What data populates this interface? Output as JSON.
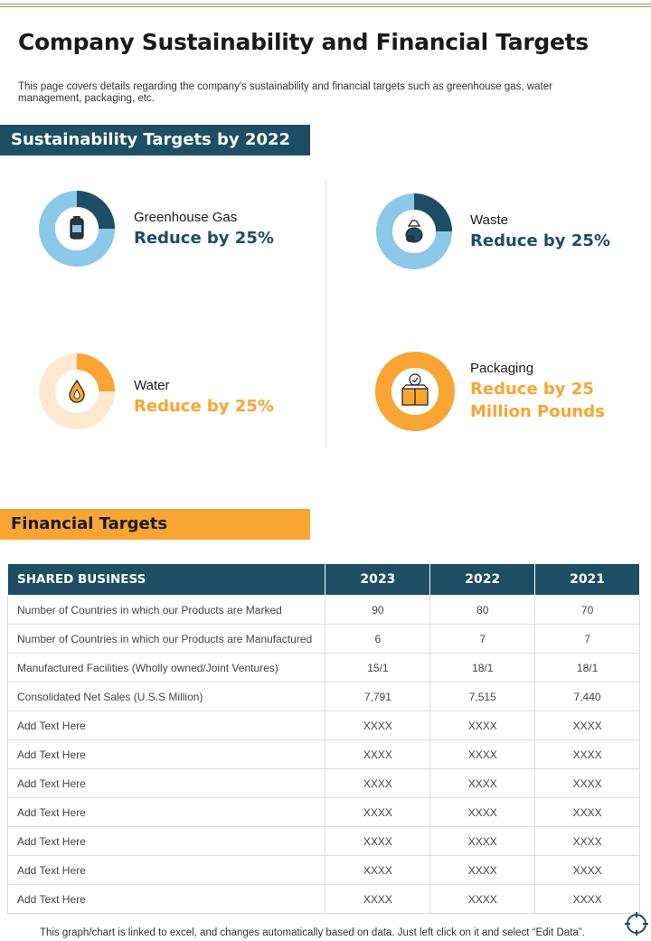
{
  "page": {
    "title": "Company Sustainability and Financial Targets",
    "description": "This page covers details regarding the company's sustainability and financial targets such as greenhouse gas, water management, packaging, etc."
  },
  "sustainability": {
    "heading": "Sustainability Targets by 2022",
    "targets": [
      {
        "name": "Greenhouse Gas",
        "value": "Reduce by 25%",
        "icon": "gas-cylinder-icon",
        "share": 0.25,
        "color": "#1d4e64",
        "track": "#8cc8e8"
      },
      {
        "name": "Waste",
        "value": "Reduce by 25%",
        "icon": "trash-bag-icon",
        "share": 0.25,
        "color": "#1d4e64",
        "track": "#8cc8e8"
      },
      {
        "name": "Water",
        "value": "Reduce by 25%",
        "icon": "water-drop-icon",
        "share": 0.25,
        "color": "#f8a533",
        "track": "#fde9cf"
      },
      {
        "name": "Packaging",
        "value_line1": "Reduce by 25",
        "value_line2": "Million Pounds",
        "icon": "package-box-icon",
        "share": 1.0,
        "color": "#f8a533",
        "track": "#f8a533"
      }
    ]
  },
  "financial": {
    "heading": "Financial Targets",
    "columns": [
      "SHARED BUSINESS",
      "2023",
      "2022",
      "2021"
    ],
    "rows": [
      [
        "Number of Countries in which our Products are Marked",
        "90",
        "80",
        "70"
      ],
      [
        "Number of Countries in which our Products are Manufactured",
        "6",
        "7",
        "7"
      ],
      [
        "Manufactured Facilities (Wholly owned/Joint Ventures)",
        "15/1",
        "18/1",
        "18/1"
      ],
      [
        "Consolidated Net Sales (U.S.S Million)",
        "7,791",
        "7,515",
        "7,440"
      ],
      [
        "Add Text Here",
        "XXXX",
        "XXXX",
        "XXXX"
      ],
      [
        "Add Text Here",
        "XXXX",
        "XXXX",
        "XXXX"
      ],
      [
        "Add Text Here",
        "XXXX",
        "XXXX",
        "XXXX"
      ],
      [
        "Add Text Here",
        "XXXX",
        "XXXX",
        "XXXX"
      ],
      [
        "Add Text Here",
        "XXXX",
        "XXXX",
        "XXXX"
      ],
      [
        "Add Text Here",
        "XXXX",
        "XXXX",
        "XXXX"
      ],
      [
        "Add Text Here",
        "XXXX",
        "XXXX",
        "XXXX"
      ]
    ]
  },
  "footnote": "This graph/chart is linked to excel,  and changes automatically based on data. Just left click on it and select “Edit Data”.",
  "colors": {
    "navy": "#1d4e64",
    "orange": "#f8a533",
    "light_blue": "#8cc8e8",
    "light_orange": "#fde9cf"
  }
}
